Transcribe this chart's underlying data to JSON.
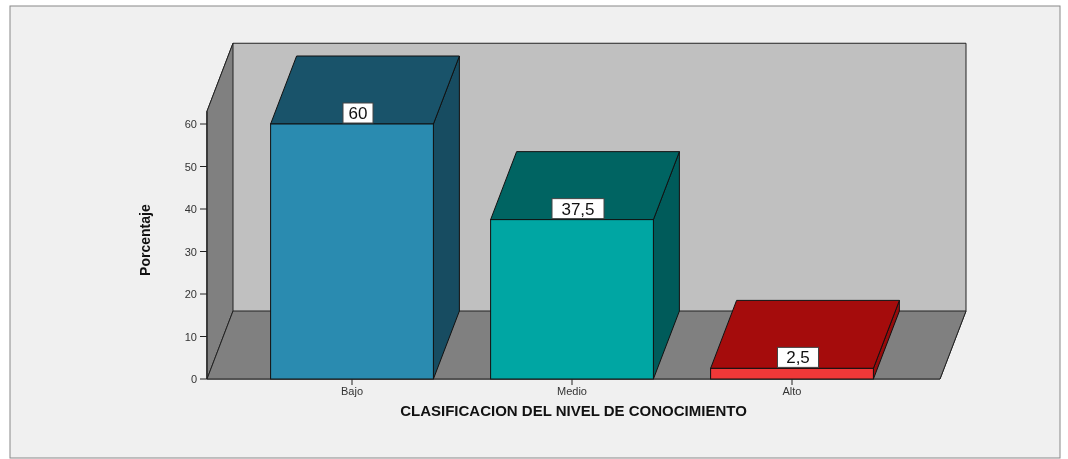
{
  "chart_data": {
    "type": "bar",
    "xlabel": "CLASIFICACION DEL NIVEL DE CONOCIMIENTO",
    "ylabel": "Porcentaje",
    "categories": [
      "Bajo",
      "Medio",
      "Alto"
    ],
    "values": [
      60,
      37.5,
      2.5
    ],
    "colors": [
      "#2a8bb0",
      "#00a6a3",
      "#f03838"
    ],
    "value_labels": [
      "60",
      "37,5",
      "2,5"
    ],
    "ylim": [
      0,
      63
    ],
    "yticks": [
      0,
      10,
      20,
      30,
      40,
      50,
      60
    ]
  }
}
